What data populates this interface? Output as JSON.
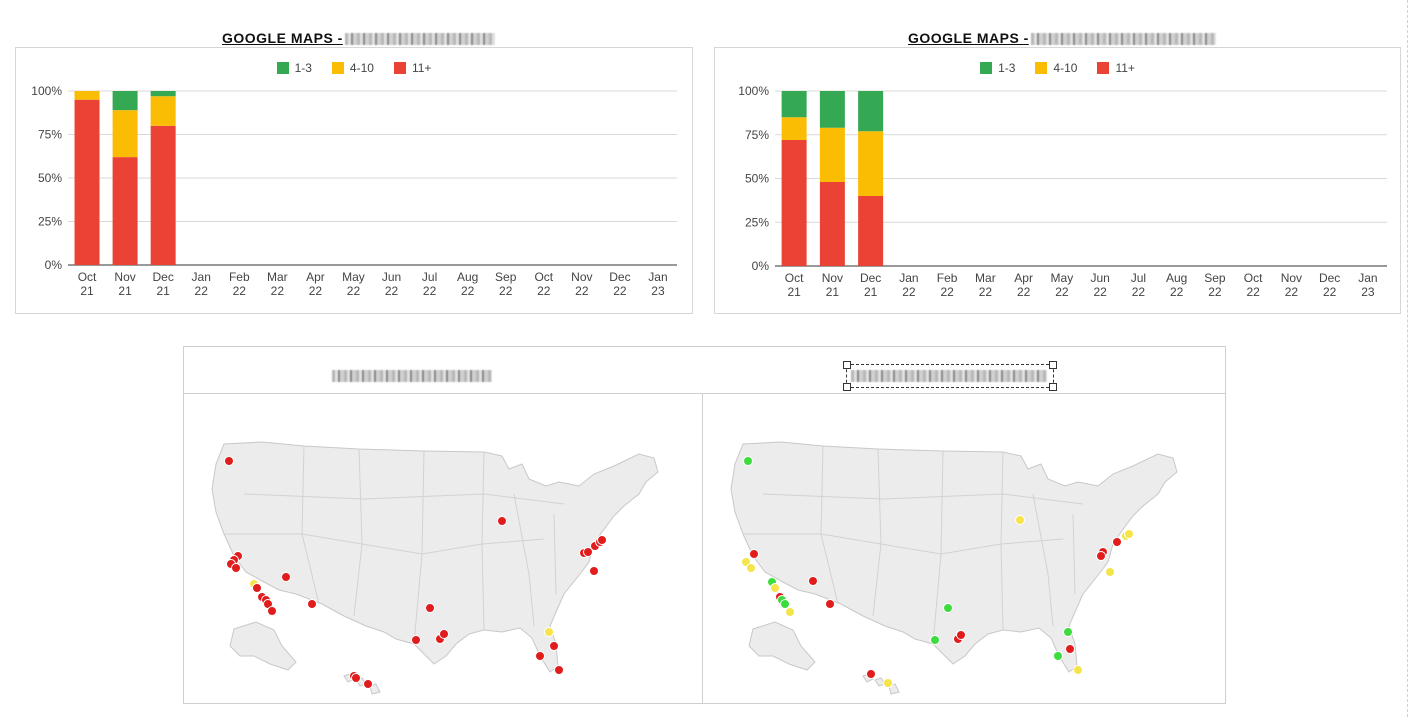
{
  "charts": [
    {
      "title_prefix": "GOOGLE MAPS -",
      "redacted_label": "redacted",
      "chart_data": {
        "type": "bar",
        "stacked": true,
        "categories": [
          "Oct 21",
          "Nov 21",
          "Dec 21",
          "Jan 22",
          "Feb 22",
          "Mar 22",
          "Apr 22",
          "May 22",
          "Jun 22",
          "Jul 22",
          "Aug 22",
          "Sep 22",
          "Oct 22",
          "Nov 22",
          "Dec 22",
          "Jan 23"
        ],
        "series": [
          {
            "name": "11+",
            "color": "#ea4335",
            "values": [
              95,
              62,
              80,
              null,
              null,
              null,
              null,
              null,
              null,
              null,
              null,
              null,
              null,
              null,
              null,
              null
            ]
          },
          {
            "name": "4-10",
            "color": "#fbbc04",
            "values": [
              5,
              27,
              17,
              null,
              null,
              null,
              null,
              null,
              null,
              null,
              null,
              null,
              null,
              null,
              null,
              null
            ]
          },
          {
            "name": "1-3",
            "color": "#34a853",
            "values": [
              0,
              11,
              3,
              null,
              null,
              null,
              null,
              null,
              null,
              null,
              null,
              null,
              null,
              null,
              null,
              null
            ]
          }
        ],
        "yticks": [
          "0%",
          "25%",
          "50%",
          "75%",
          "100%"
        ],
        "ylim": [
          0,
          100
        ],
        "legend_position": "top",
        "grid": true
      }
    },
    {
      "title_prefix": "GOOGLE MAPS -",
      "redacted_label": "redacted",
      "chart_data": {
        "type": "bar",
        "stacked": true,
        "categories": [
          "Oct 21",
          "Nov 21",
          "Dec 21",
          "Jan 22",
          "Feb 22",
          "Mar 22",
          "Apr 22",
          "May 22",
          "Jun 22",
          "Jul 22",
          "Aug 22",
          "Sep 22",
          "Oct 22",
          "Nov 22",
          "Dec 22",
          "Jan 23"
        ],
        "series": [
          {
            "name": "11+",
            "color": "#ea4335",
            "values": [
              72,
              48,
              40,
              null,
              null,
              null,
              null,
              null,
              null,
              null,
              null,
              null,
              null,
              null,
              null,
              null
            ]
          },
          {
            "name": "4-10",
            "color": "#fbbc04",
            "values": [
              13,
              31,
              37,
              null,
              null,
              null,
              null,
              null,
              null,
              null,
              null,
              null,
              null,
              null,
              null,
              null
            ]
          },
          {
            "name": "1-3",
            "color": "#34a853",
            "values": [
              15,
              21,
              23,
              null,
              null,
              null,
              null,
              null,
              null,
              null,
              null,
              null,
              null,
              null,
              null,
              null
            ]
          }
        ],
        "yticks": [
          "0%",
          "25%",
          "50%",
          "75%",
          "100%"
        ],
        "ylim": [
          0,
          100
        ],
        "legend_position": "top",
        "grid": true
      }
    }
  ],
  "legend_order": [
    "1-3",
    "4-10",
    "11+"
  ],
  "maps": [
    {
      "title_redacted": true,
      "marker_count": 34,
      "marker_colors": {
        "red": "#e01c1c",
        "yellow": "#f5e44a",
        "green": "#3ddc3d"
      }
    },
    {
      "title_redacted": true,
      "selected": true,
      "marker_count": 32,
      "marker_colors": {
        "red": "#e01c1c",
        "yellow": "#f5e44a",
        "green": "#3ddc3d"
      }
    }
  ]
}
